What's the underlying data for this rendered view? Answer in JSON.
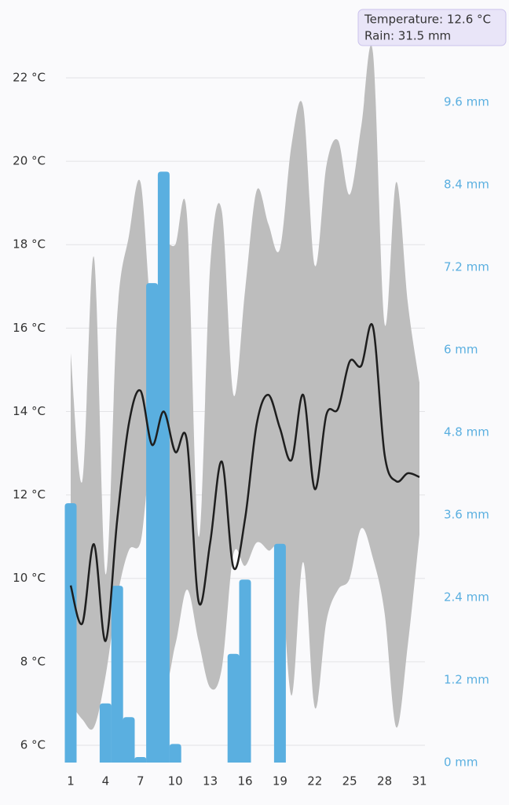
{
  "chart_data": {
    "type": "line",
    "tooltip": [
      "Temperature: 12.6 °C",
      "Rain: 31.5 mm"
    ],
    "x": [
      1,
      2,
      3,
      4,
      5,
      6,
      7,
      8,
      9,
      10,
      11,
      12,
      13,
      14,
      15,
      16,
      17,
      18,
      19,
      20,
      21,
      22,
      23,
      24,
      25,
      26,
      27,
      28,
      29,
      30,
      31
    ],
    "xlim": [
      1,
      31
    ],
    "xticks": [
      1,
      4,
      7,
      10,
      13,
      16,
      19,
      22,
      25,
      28,
      31
    ],
    "ylim": [
      5.585,
      22.735
    ],
    "yticks": [
      {
        "value": 6,
        "label": "6 °C"
      },
      {
        "value": 8,
        "label": "8 °C"
      },
      {
        "value": 10,
        "label": "10 °C"
      },
      {
        "value": 12,
        "label": "12 °C"
      },
      {
        "value": 14,
        "label": "14 °C"
      },
      {
        "value": 16,
        "label": "16 °C"
      },
      {
        "value": 18,
        "label": "18 °C"
      },
      {
        "value": 20,
        "label": "20 °C"
      },
      {
        "value": 22,
        "label": "22 °C"
      }
    ],
    "y2lim": [
      0,
      10.4
    ],
    "y2ticks": [
      {
        "value": 0,
        "label": "0 mm"
      },
      {
        "value": 1.2,
        "label": "1.2 mm"
      },
      {
        "value": 2.4,
        "label": "2.4 mm"
      },
      {
        "value": 3.6,
        "label": "3.6 mm"
      },
      {
        "value": 4.8,
        "label": "4.8 mm"
      },
      {
        "value": 6,
        "label": "6 mm"
      },
      {
        "value": 7.2,
        "label": "7.2 mm"
      },
      {
        "value": 8.4,
        "label": "8.4 mm"
      },
      {
        "value": 9.6,
        "label": "9.6 mm"
      }
    ],
    "grid": true,
    "band": {
      "color": "#bdbdbd",
      "max": [
        15.4,
        12.33,
        17.7,
        10.1,
        16.3,
        18.2,
        19.5,
        16.3,
        17.9,
        18.0,
        18.7,
        11.0,
        17.5,
        18.8,
        14.4,
        16.9,
        19.3,
        18.5,
        17.9,
        20.4,
        21.3,
        17.5,
        19.9,
        20.5,
        19.2,
        20.85,
        22.6,
        16.1,
        19.5,
        16.6,
        14.7
      ],
      "min": [
        7.0,
        6.62,
        6.43,
        7.66,
        9.54,
        10.67,
        10.86,
        12.56,
        7.75,
        8.41,
        9.73,
        8.5,
        7.38,
        7.85,
        10.58,
        10.3,
        10.86,
        10.67,
        10.48,
        7.19,
        10.39,
        6.9,
        8.98,
        9.73,
        10.0,
        11.2,
        10.48,
        9.17,
        6.43,
        8.41,
        11.05
      ]
    },
    "mean": {
      "color": "#1e1e1e",
      "values": [
        9.83,
        8.92,
        10.82,
        8.5,
        11.4,
        13.7,
        14.5,
        13.2,
        14.0,
        13.03,
        13.3,
        9.45,
        10.86,
        12.8,
        10.26,
        11.43,
        13.7,
        14.4,
        13.6,
        12.84,
        14.4,
        12.14,
        13.93,
        14.07,
        15.2,
        15.1,
        16.03,
        12.97,
        12.33,
        12.52,
        12.43
      ]
    },
    "rain": {
      "color": "#5aafe0",
      "axis": "y2",
      "values": [
        3.77,
        0,
        0,
        0.86,
        2.57,
        0.66,
        0.08,
        6.97,
        8.59,
        0.27,
        0,
        0,
        0,
        0,
        1.58,
        2.66,
        0,
        0,
        3.18,
        0,
        0,
        0,
        0,
        0,
        0,
        0,
        0,
        0,
        0,
        0,
        0
      ]
    }
  }
}
